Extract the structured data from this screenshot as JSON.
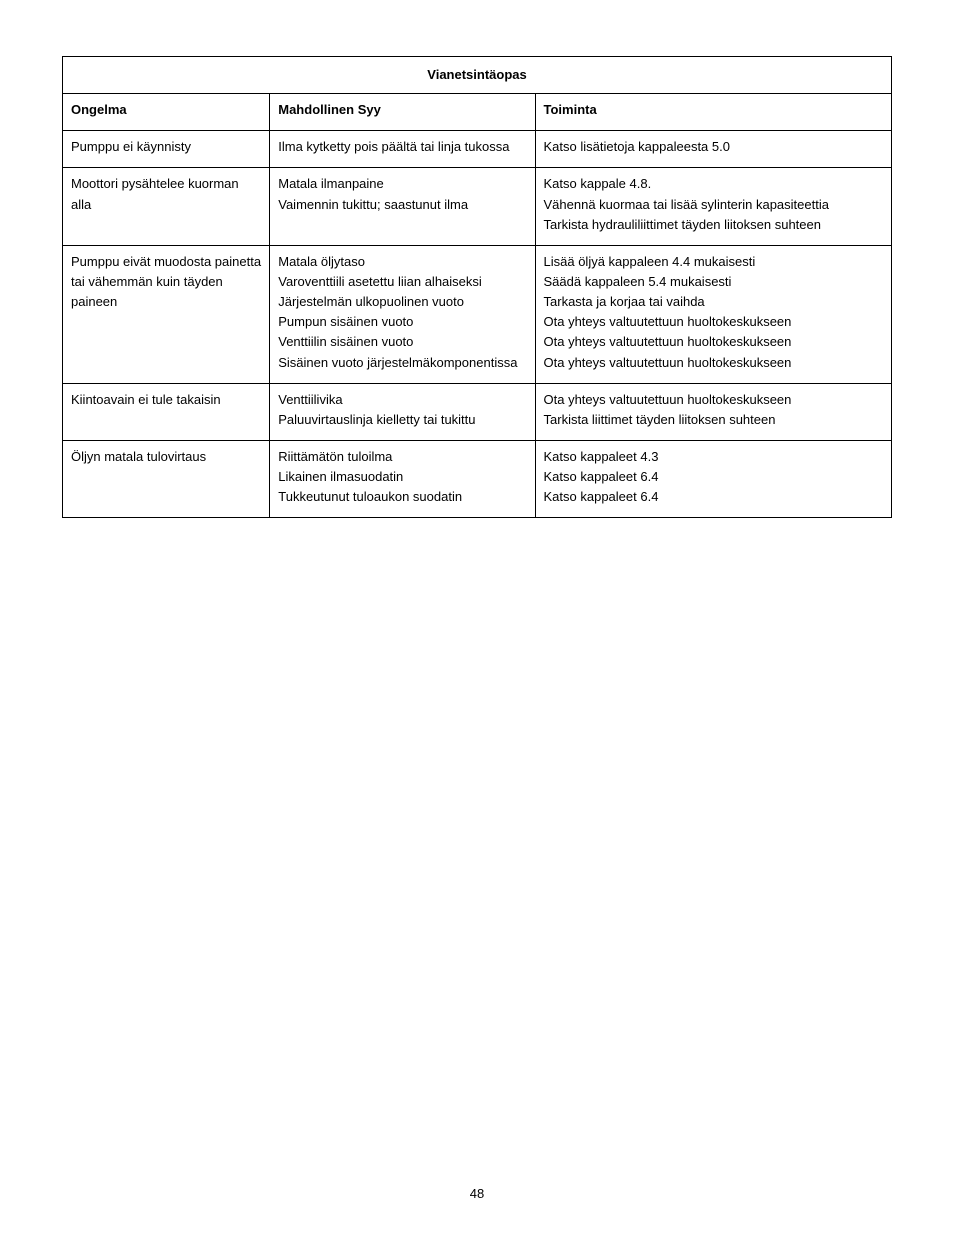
{
  "page_number": "48",
  "table": {
    "title": "Vianetsintäopas",
    "headers": {
      "problem": "Ongelma",
      "cause": "Mahdollinen Syy",
      "action": "Toiminta"
    },
    "rows": [
      {
        "problem": "Pumppu ei käynnisty",
        "cause": "Ilma kytketty pois päältä tai linja tukossa",
        "action": "Katso lisätietoja kappaleesta 5.0"
      },
      {
        "problem": "Moottori pysähtelee kuorman alla",
        "cause": "Matala ilmanpaine\nVaimennin tukittu; saastunut ilma",
        "action": "Katso kappale 4.8.\nVähennä kuormaa tai lisää sylinterin kapasiteettia\nTarkista hydrauliliittimet täyden liitoksen suhteen"
      },
      {
        "problem": "Pumppu eivät muodosta painetta tai vähemmän kuin täyden paineen",
        "cause": "Matala öljytaso\nVaroventtiili asetettu liian alhaiseksi\nJärjestelmän ulkopuolinen vuoto\nPumpun sisäinen vuoto\nVenttiilin sisäinen vuoto\nSisäinen vuoto järjestelmäkomponentissa",
        "action": "Lisää öljyä kappaleen 4.4 mukaisesti\nSäädä kappaleen 5.4 mukaisesti\nTarkasta ja korjaa tai vaihda\nOta yhteys valtuutettuun huoltokeskukseen\nOta yhteys valtuutettuun huoltokeskukseen\nOta yhteys valtuutettuun huoltokeskukseen"
      },
      {
        "problem": "Kiintoavain ei tule takaisin",
        "cause": "Venttiilivika\nPaluuvirtauslinja kielletty tai tukittu",
        "action": "Ota yhteys valtuutettuun huoltokeskukseen\nTarkista liittimet täyden liitoksen suhteen"
      },
      {
        "problem": "Öljyn matala tulovirtaus",
        "cause": "Riittämätön tuloilma\nLikainen ilmasuodatin\nTukkeutunut tuloaukon suodatin",
        "action": "Katso kappaleet  4.3\nKatso kappaleet  6.4\nKatso kappaleet  6.4"
      }
    ]
  }
}
